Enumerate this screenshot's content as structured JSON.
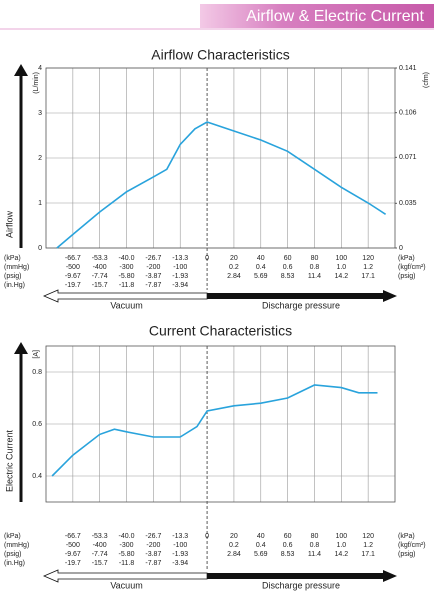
{
  "header": {
    "title": "Airflow & Electric Current"
  },
  "chart_data": [
    {
      "type": "line",
      "title": "Airflow Characteristics",
      "ylabel": "Airflow",
      "yunit": "(L/min)",
      "y2unit": "(cfm)",
      "color": "#29a3dc",
      "x": [
        -74.6,
        -66.7,
        -53.3,
        -40,
        -26.7,
        -20,
        -13.3,
        -6,
        0,
        20,
        40,
        60,
        80,
        100,
        120,
        133
      ],
      "values": [
        0,
        0.3,
        0.8,
        1.25,
        1.58,
        1.75,
        2.3,
        2.65,
        2.8,
        2.6,
        2.4,
        2.15,
        1.75,
        1.35,
        1.0,
        0.75
      ],
      "xlim": [
        -80,
        140
      ],
      "xticks": [
        -66.7,
        -53.3,
        {
          "value": -40,
          "label": "-40.0"
        },
        -26.7,
        -13.3,
        0,
        20,
        40,
        60,
        80,
        100,
        120
      ],
      "x_unit_left": "(kPa)",
      "x_unit_right": "(kPa)",
      "x_rows": [
        {
          "left": "(mmHg)",
          "right": "(kgf/cm²)",
          "values": [
            "-500",
            "-400",
            "-300",
            "-200",
            "-100",
            null,
            "0.2",
            "0.4",
            "0.6",
            "0.8",
            "1.0",
            "1.2"
          ]
        },
        {
          "left": "(psig)",
          "right": "(psig)",
          "values": [
            "-9.67",
            "-7.74",
            "-5.80",
            "-3.87",
            "-1.93",
            null,
            "2.84",
            "5.69",
            "8.53",
            "11.4",
            "14.2",
            "17.1"
          ]
        },
        {
          "left": "(in.Hg)",
          "values": [
            "-19.7",
            "-15.7",
            "-11.8",
            "-7.87",
            "-3.94",
            null,
            null,
            null,
            null,
            null,
            null,
            null
          ]
        }
      ],
      "region_labels": [
        "Vacuum",
        "Discharge pressure"
      ],
      "ylim": [
        0,
        4
      ],
      "yticks": [
        0,
        1,
        2,
        3,
        4
      ],
      "y2lim": [
        0,
        0.141
      ],
      "y2ticks": [
        0,
        0.035,
        0.071,
        0.106,
        0.141
      ],
      "grid": true
    },
    {
      "type": "line",
      "title": "Current Characteristics",
      "ylabel": "Electric Current",
      "yunit": "[A]",
      "color": "#29a3dc",
      "x": [
        -77,
        -66.7,
        -53.3,
        -46,
        -40,
        -26.7,
        -13.3,
        -5,
        0,
        20,
        40,
        60,
        80,
        100,
        113,
        127
      ],
      "values": [
        0.4,
        0.48,
        0.56,
        0.58,
        0.57,
        0.55,
        0.55,
        0.59,
        0.65,
        0.67,
        0.68,
        0.7,
        0.75,
        0.74,
        0.72,
        0.72
      ],
      "xlim": [
        -80,
        140
      ],
      "xticks": [
        -66.7,
        -53.3,
        {
          "value": -40,
          "label": "-40.0"
        },
        -26.7,
        -13.3,
        0,
        20,
        40,
        60,
        80,
        100,
        120
      ],
      "x_unit_left": "(kPa)",
      "x_unit_right": "(kPa)",
      "x_rows": [
        {
          "left": "(mmHg)",
          "right": "(kgf/cm²)",
          "values": [
            "-500",
            "-400",
            "-300",
            "-200",
            "-100",
            null,
            "0.2",
            "0.4",
            "0.6",
            "0.8",
            "1.0",
            "1.2"
          ]
        },
        {
          "left": "(psig)",
          "right": "(psig)",
          "values": [
            "-9.67",
            "-7.74",
            "-5.80",
            "-3.87",
            "-1.93",
            null,
            "2.84",
            "5.69",
            "8.53",
            "11.4",
            "14.2",
            "17.1"
          ]
        },
        {
          "left": "(in.Hg)",
          "values": [
            "-19.7",
            "-15.7",
            "-11.8",
            "-7.87",
            "-3.94",
            null,
            null,
            null,
            null,
            null,
            null,
            null
          ]
        }
      ],
      "region_labels": [
        "Vacuum",
        "Discharge pressure"
      ],
      "ylim": [
        0.3,
        0.9
      ],
      "yticks": [
        0.4,
        0.6,
        0.8
      ],
      "grid": true
    }
  ]
}
